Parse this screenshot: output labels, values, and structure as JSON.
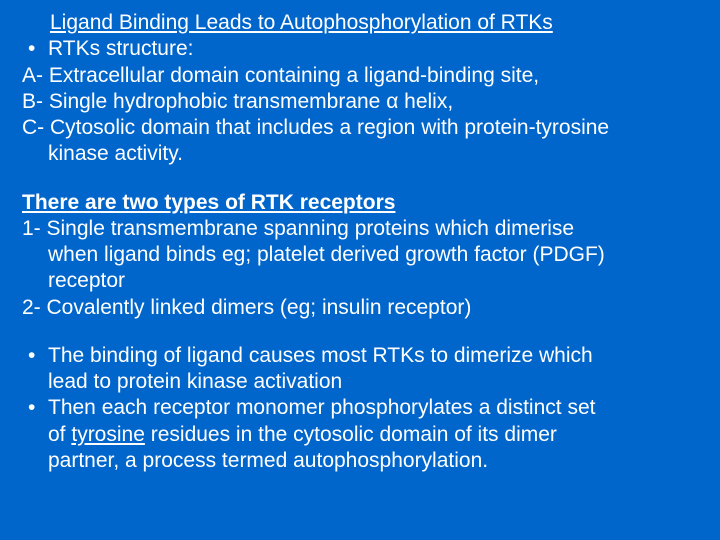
{
  "background_color": "#0066cc",
  "text_color": "#ffffff",
  "font_family": "Arial",
  "base_fontsize": 21,
  "title": "Ligand Binding Leads to Autophosphorylation of RTKs",
  "structure_intro": "RTKs structure:",
  "structure_items": {
    "a": "A- Extracellular domain containing a ligand-binding site,",
    "b": "B- Single hydrophobic transmembrane α helix,",
    "c_line1": "C- Cytosolic domain that includes a region with protein-tyrosine",
    "c_line2": "kinase activity."
  },
  "types_heading": "There are two types of RTK receptors",
  "types": {
    "t1_line1": "1- Single transmembrane spanning proteins which dimerise",
    "t1_line2": "when ligand binds eg; platelet derived growth factor (PDGF)",
    "t1_line3": "receptor",
    "t2": "2- Covalently linked dimers (eg; insulin receptor)"
  },
  "summary": {
    "s1_line1": "The binding of ligand causes most RTKs to dimerize which",
    "s1_line2": "lead to protein kinase activation",
    "s2_line1": "Then each receptor monomer phosphorylates a distinct set",
    "s2_line2_prefix": "of ",
    "s2_line2_underlined": "tyrosine",
    "s2_line2_suffix": " residues in the cytosolic domain of its dimer",
    "s2_line3": "partner, a process termed autophosphorylation."
  }
}
